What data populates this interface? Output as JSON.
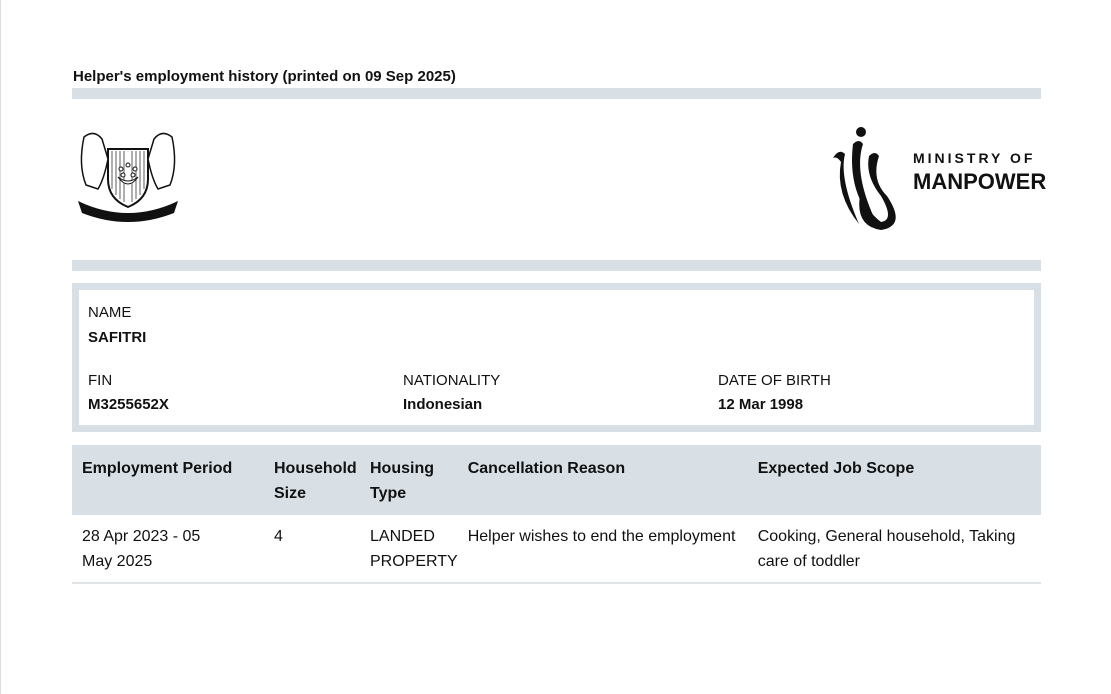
{
  "header": {
    "title": "Helper's employment history (printed on 09 Sep 2025)"
  },
  "logos": {
    "left": "Singapore coat of arms - MAJULAH SINGAPURA",
    "right_line1": "MINISTRY OF",
    "right_line2": "MANPOWER"
  },
  "helper": {
    "name_label": "NAME",
    "name": "SAFITRI",
    "fin_label": "FIN",
    "fin": "M3255652X",
    "nationality_label": "NATIONALITY",
    "nationality": "Indonesian",
    "dob_label": "DATE OF BIRTH",
    "dob": "12 Mar 1998"
  },
  "table": {
    "headers": [
      "Employment Period",
      "Household Size",
      "Housing Type",
      "Cancellation Reason",
      "Expected Job Scope"
    ],
    "rows": [
      [
        "28 Apr 2023 - 05 May 2025",
        "4",
        "LANDED PROPERTY",
        "Helper wishes to end the employment",
        "Cooking, General household, Taking care of toddler"
      ]
    ]
  },
  "colors": {
    "band": "#d8e0e6"
  }
}
